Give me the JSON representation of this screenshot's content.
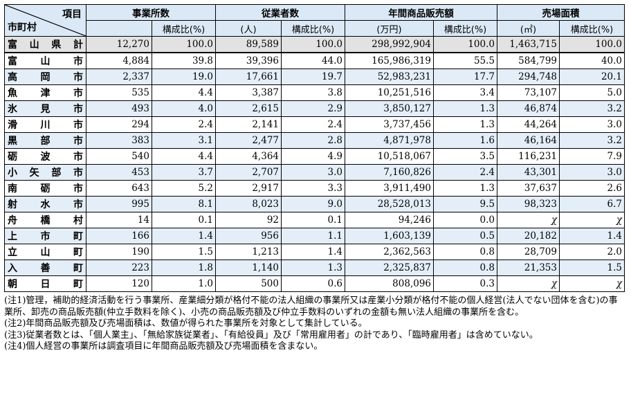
{
  "header": {
    "corner_top": "項目",
    "corner_bottom": "市町村",
    "groups": [
      "事業所数",
      "従業者数",
      "年間商品販売額",
      "売場面積"
    ],
    "sub": [
      "構成比(%)",
      "(人)",
      "構成比(%)",
      "(万円)",
      "構成比(%)",
      "(㎡)",
      "構成比(%)"
    ]
  },
  "total": {
    "name": "富山県計",
    "values": [
      "12,270",
      "100.0",
      "89,589",
      "100.0",
      "298,992,904",
      "100.0",
      "1,463,715",
      "100.0"
    ]
  },
  "rows": [
    {
      "name": "富山市",
      "values": [
        "4,884",
        "39.8",
        "39,396",
        "44.0",
        "165,986,319",
        "55.5",
        "584,799",
        "40.0"
      ]
    },
    {
      "name": "高岡市",
      "values": [
        "2,337",
        "19.0",
        "17,661",
        "19.7",
        "52,983,231",
        "17.7",
        "294,748",
        "20.1"
      ]
    },
    {
      "name": "魚津市",
      "values": [
        "535",
        "4.4",
        "3,387",
        "3.8",
        "10,251,516",
        "3.4",
        "73,107",
        "5.0"
      ]
    },
    {
      "name": "氷見市",
      "values": [
        "493",
        "4.0",
        "2,615",
        "2.9",
        "3,850,127",
        "1.3",
        "46,874",
        "3.2"
      ]
    },
    {
      "name": "滑川市",
      "values": [
        "294",
        "2.4",
        "2,141",
        "2.4",
        "3,737,456",
        "1.3",
        "44,264",
        "3.0"
      ]
    },
    {
      "name": "黒部市",
      "values": [
        "383",
        "3.1",
        "2,477",
        "2.8",
        "4,871,978",
        "1.6",
        "46,164",
        "3.2"
      ]
    },
    {
      "name": "砺波市",
      "values": [
        "540",
        "4.4",
        "4,364",
        "4.9",
        "10,518,067",
        "3.5",
        "116,231",
        "7.9"
      ]
    },
    {
      "name": "小矢部市",
      "values": [
        "453",
        "3.7",
        "2,707",
        "3.0",
        "7,160,826",
        "2.4",
        "43,301",
        "3.0"
      ]
    },
    {
      "name": "南砺市",
      "values": [
        "643",
        "5.2",
        "2,917",
        "3.3",
        "3,911,490",
        "1.3",
        "37,637",
        "2.6"
      ]
    },
    {
      "name": "射水市",
      "values": [
        "995",
        "8.1",
        "8,023",
        "9.0",
        "28,528,013",
        "9.5",
        "98,323",
        "6.7"
      ]
    },
    {
      "name": "舟橋村",
      "values": [
        "14",
        "0.1",
        "92",
        "0.1",
        "94,246",
        "0.0",
        "χ",
        "χ"
      ]
    },
    {
      "name": "上市町",
      "values": [
        "166",
        "1.4",
        "956",
        "1.1",
        "1,603,139",
        "0.5",
        "20,182",
        "1.4"
      ]
    },
    {
      "name": "立山町",
      "values": [
        "190",
        "1.5",
        "1,213",
        "1.4",
        "2,362,563",
        "0.8",
        "28,709",
        "2.0"
      ]
    },
    {
      "name": "入善町",
      "values": [
        "223",
        "1.8",
        "1,140",
        "1.3",
        "2,325,837",
        "0.8",
        "21,353",
        "1.5"
      ]
    },
    {
      "name": "朝日町",
      "values": [
        "120",
        "1.0",
        "500",
        "0.6",
        "808,096",
        "0.3",
        "χ",
        "χ"
      ]
    }
  ],
  "notes": [
    "(注1)管理，補助的経済活動を行う事業所、産業細分類が格付不能の法人組織の事業所又は産業小分類が格付不能の個人経営(法人でない団体を含む)の事業所、卸売の商品販売額(仲立手数料を除く)、小売の商品販売額及び仲立手数料のいずれの金額も無い法人組織の事業所を含む。",
    "(注2)年間商品販売額及び売場面積は、数値が得られた事業所を対象として集計している。",
    "(注3)従業者数とは、「個人業主」、「無給家族従業者」、「有給役員」及び「常用雇用者」の計であり、「臨時雇用者」は含めていない。",
    "(注4)個人経営の事業所は調査項目に年間商品販売額及び売場面積を含まない。"
  ]
}
